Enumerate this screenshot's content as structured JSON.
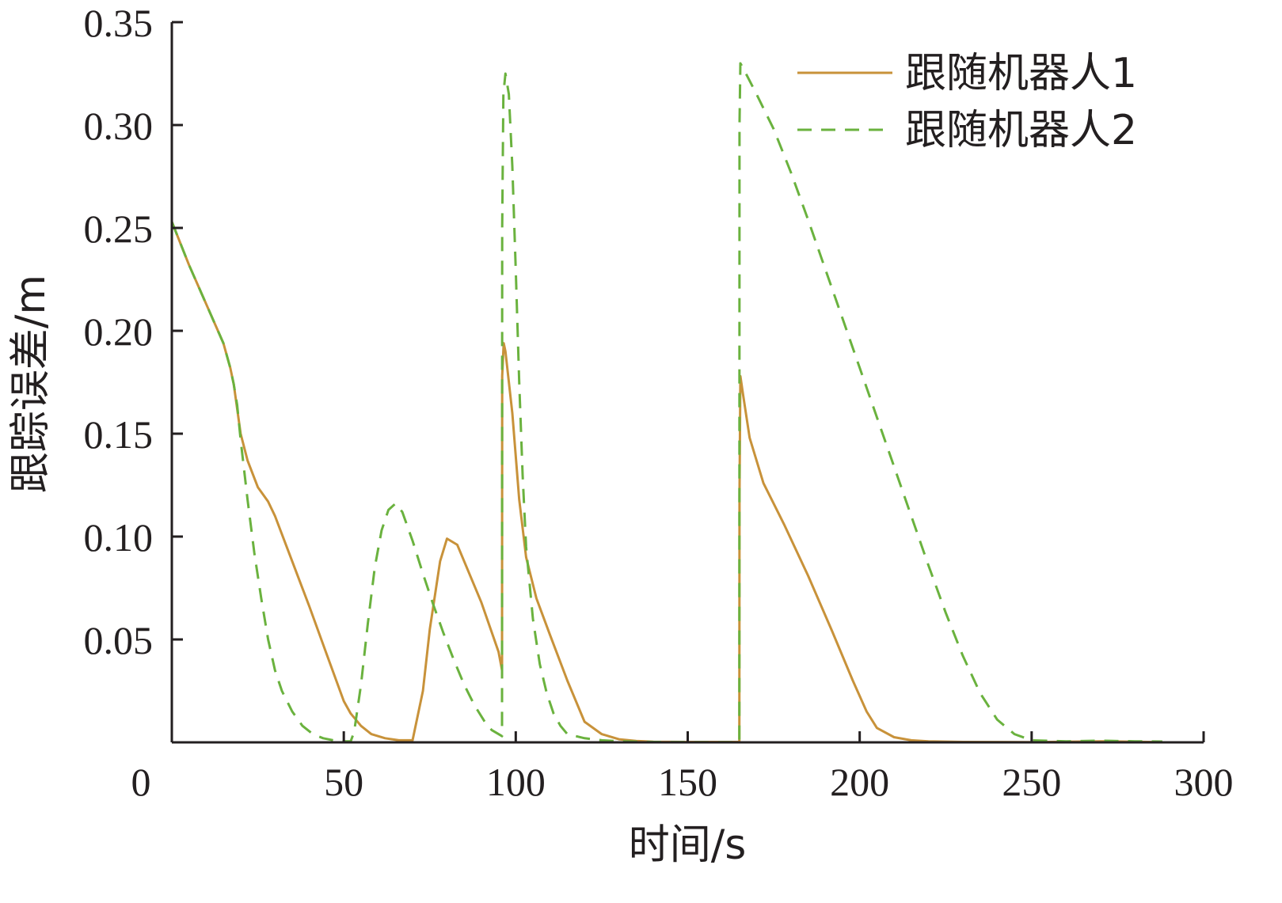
{
  "chart_data": {
    "type": "line",
    "title": "",
    "xlabel": "时间/s",
    "ylabel": "跟踪误差/m",
    "xlim": [
      0,
      300
    ],
    "ylim": [
      0,
      0.35
    ],
    "xticks": [
      0,
      50,
      100,
      150,
      200,
      250,
      300
    ],
    "xtick_labels": [
      "0",
      "50",
      "100",
      "150",
      "200",
      "250",
      "300"
    ],
    "yticks": [
      0.05,
      0.1,
      0.15,
      0.2,
      0.25,
      0.3,
      0.35
    ],
    "ytick_labels": [
      "0.05",
      "0.10",
      "0.15",
      "0.20",
      "0.25",
      "0.30",
      "0.35"
    ],
    "grid": false,
    "legend_position": "top-right",
    "series": [
      {
        "name": "跟随机器人1",
        "color": "#c8923a",
        "dash": "solid",
        "x": [
          0,
          5,
          10,
          15,
          17,
          18,
          20,
          22,
          25,
          28,
          30,
          35,
          40,
          45,
          50,
          52,
          55,
          58,
          62,
          66,
          70,
          73,
          75,
          78,
          80,
          83,
          86,
          90,
          95,
          96,
          96.05,
          96.5,
          97,
          99,
          101,
          103,
          106,
          110,
          115,
          120,
          125,
          130,
          135,
          140,
          150,
          165,
          165.05,
          165.3,
          166,
          168,
          172,
          178,
          185,
          192,
          198,
          202,
          205,
          210,
          215,
          220,
          230,
          250,
          270,
          288
        ],
        "y": [
          0.253,
          0.232,
          0.213,
          0.194,
          0.182,
          0.174,
          0.15,
          0.137,
          0.124,
          0.117,
          0.11,
          0.088,
          0.066,
          0.043,
          0.02,
          0.014,
          0.008,
          0.004,
          0.002,
          0.001,
          0.001,
          0.025,
          0.055,
          0.088,
          0.099,
          0.096,
          0.084,
          0.068,
          0.044,
          0.035,
          0.178,
          0.194,
          0.19,
          0.16,
          0.118,
          0.09,
          0.07,
          0.052,
          0.03,
          0.01,
          0.004,
          0.0015,
          0.0007,
          0.0003,
          0.0002,
          0.0002,
          0.12,
          0.178,
          0.17,
          0.148,
          0.126,
          0.106,
          0.081,
          0.054,
          0.03,
          0.015,
          0.007,
          0.0025,
          0.001,
          0.0005,
          0.0002,
          0.0001,
          0.0005,
          0.0001
        ]
      },
      {
        "name": "跟随机器人2",
        "color": "#6ab23e",
        "dash": "dashed",
        "x": [
          0,
          5,
          10,
          15,
          17,
          18,
          19,
          20,
          22,
          24,
          26,
          28,
          30,
          32,
          35,
          38,
          41,
          44,
          47,
          50,
          52,
          53,
          55,
          57,
          59,
          61,
          63,
          65,
          67,
          70,
          73,
          76,
          79,
          82,
          85,
          88,
          91,
          93,
          95,
          96,
          96.05,
          96.4,
          97,
          98,
          99,
          100,
          101,
          102,
          103,
          105,
          107,
          109,
          111,
          113,
          115,
          120,
          125,
          130,
          140,
          150,
          165,
          165.05,
          165.3,
          166,
          170,
          175,
          180,
          185,
          190,
          195,
          200,
          205,
          210,
          215,
          220,
          225,
          230,
          235,
          240,
          245,
          250,
          260,
          270,
          280,
          288
        ],
        "y": [
          0.253,
          0.232,
          0.213,
          0.194,
          0.182,
          0.174,
          0.164,
          0.147,
          0.118,
          0.092,
          0.07,
          0.05,
          0.035,
          0.025,
          0.015,
          0.008,
          0.004,
          0.002,
          0.001,
          0.0005,
          0.0005,
          0.005,
          0.028,
          0.058,
          0.085,
          0.103,
          0.113,
          0.116,
          0.112,
          0.098,
          0.082,
          0.067,
          0.053,
          0.04,
          0.028,
          0.018,
          0.01,
          0.006,
          0.004,
          0.003,
          0.25,
          0.315,
          0.325,
          0.315,
          0.28,
          0.23,
          0.175,
          0.13,
          0.095,
          0.06,
          0.038,
          0.024,
          0.014,
          0.008,
          0.004,
          0.002,
          0.001,
          0.0005,
          0.0002,
          0.0001,
          0.0001,
          0.3,
          0.33,
          0.328,
          0.315,
          0.298,
          0.277,
          0.254,
          0.23,
          0.206,
          0.182,
          0.158,
          0.134,
          0.11,
          0.086,
          0.063,
          0.042,
          0.024,
          0.011,
          0.004,
          0.001,
          0.0005,
          0.0008,
          0.0005,
          0.0004
        ]
      }
    ]
  }
}
